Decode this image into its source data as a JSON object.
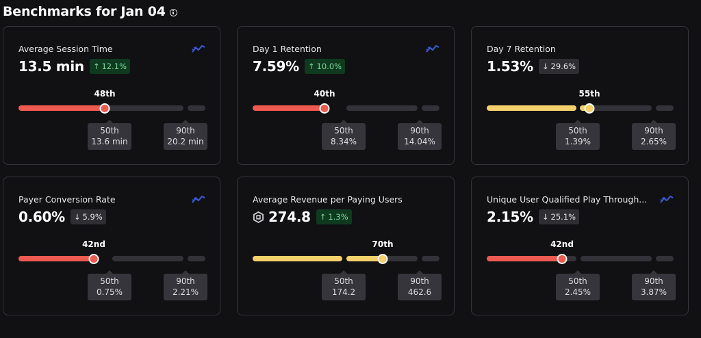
{
  "header": {
    "title": "Benchmarks for Jan 04"
  },
  "cards": [
    {
      "title": "Average Session Time",
      "value": "13.5 min",
      "change": "12.1%",
      "direction": "up",
      "percentile": "48th",
      "p50_label": "50th",
      "p50_value": "13.6 min",
      "p90_label": "90th",
      "p90_value": "20.2 min",
      "has_trend_icon": true
    },
    {
      "title": "Day 1 Retention",
      "value": "7.59%",
      "change": "10.0%",
      "direction": "up",
      "percentile": "40th",
      "p50_label": "50th",
      "p50_value": "8.34%",
      "p90_label": "90th",
      "p90_value": "14.04%",
      "has_trend_icon": true
    },
    {
      "title": "Day 7 Retention",
      "value": "1.53%",
      "change": "29.6%",
      "direction": "down",
      "percentile": "55th",
      "p50_label": "50th",
      "p50_value": "1.39%",
      "p90_label": "90th",
      "p90_value": "2.65%",
      "has_trend_icon": false
    },
    {
      "title": "Payer Conversion Rate",
      "value": "0.60%",
      "change": "5.9%",
      "direction": "down",
      "percentile": "42nd",
      "p50_label": "50th",
      "p50_value": "0.75%",
      "p90_label": "90th",
      "p90_value": "2.21%",
      "has_trend_icon": true
    },
    {
      "title": "Average Revenue per Paying Users",
      "value": "274.8",
      "change": "1.3%",
      "direction": "up",
      "percentile": "70th",
      "p50_label": "50th",
      "p50_value": "174.2",
      "p90_label": "90th",
      "p90_value": "462.6",
      "has_trend_icon": false,
      "value_icon": "robux-icon"
    },
    {
      "title": "Unique User Qualified Play Through...",
      "value": "2.15%",
      "change": "25.1%",
      "direction": "down",
      "percentile": "42nd",
      "p50_label": "50th",
      "p50_value": "2.45%",
      "p90_label": "90th",
      "p90_value": "3.87%",
      "has_trend_icon": true
    }
  ],
  "arrows": {
    "up": "↑",
    "down": "↓"
  },
  "colors": {
    "below_median": "#ef5a50",
    "above_median": "#f3d06b",
    "up_badge_bg": "#0f3a1f",
    "up_badge_text": "#7ed99a",
    "trend_icon": "#3b5bdb"
  }
}
